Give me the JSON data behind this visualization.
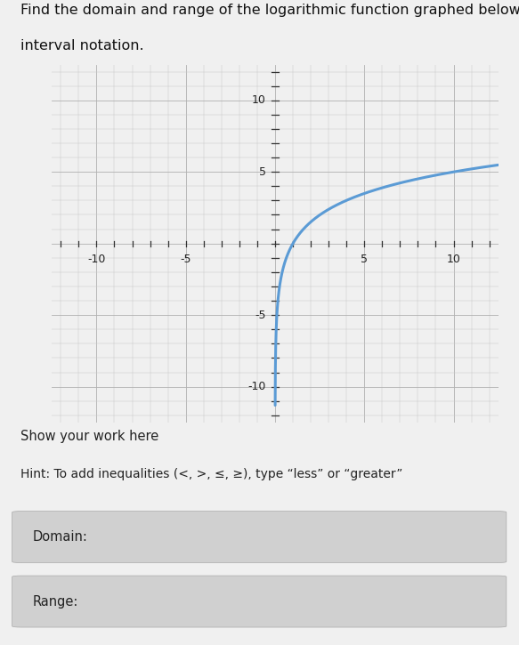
{
  "title_line1": "Find the domain and range of the logarithmic function graphed below. Use",
  "title_line2": "interval notation.",
  "title_fontsize": 11.5,
  "show_your_work": "Show your work here",
  "hint_text": "Hint: To add inequalities (<, >, ≤, ≥), type “less” or “greater”",
  "domain_label": "Domain:",
  "range_label": "Range:",
  "xlim": [
    -12.5,
    12.5
  ],
  "ylim": [
    -12.5,
    12.5
  ],
  "xticks": [
    -10,
    -5,
    5,
    10
  ],
  "yticks": [
    -10,
    -5,
    5,
    10
  ],
  "grid_color": "#c8c8c8",
  "axis_color": "#333333",
  "curve_color": "#5b9bd5",
  "curve_linewidth": 2.2,
  "bg_color": "#f0f0f0",
  "plot_bg_color": "#f0f0f0",
  "box_bg_color": "#d0d0d0"
}
